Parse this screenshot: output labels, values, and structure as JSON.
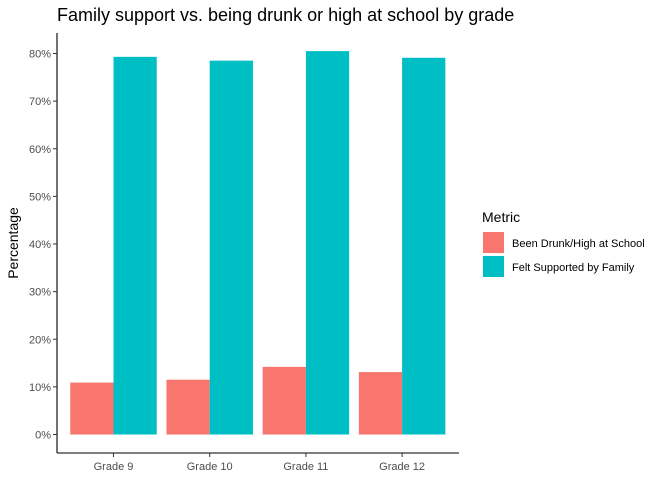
{
  "chart_data": {
    "type": "bar",
    "title": "Family support vs. being drunk or high at school by grade",
    "xlabel": "",
    "ylabel": "Percentage",
    "categories": [
      "Grade 9",
      "Grade 10",
      "Grade 11",
      "Grade 12"
    ],
    "series": [
      {
        "name": "Been Drunk/High at School",
        "values": [
          10.9,
          11.5,
          14.2,
          13.1
        ],
        "color": "#F8766D"
      },
      {
        "name": "Felt Supported by Family",
        "values": [
          79.3,
          78.5,
          80.5,
          79.1
        ],
        "color": "#00BFC4"
      }
    ],
    "ylim": [
      0,
      80
    ],
    "yticks": [
      "0%",
      "10%",
      "20%",
      "30%",
      "40%",
      "50%",
      "60%",
      "70%",
      "80%"
    ],
    "legend": {
      "title": "Metric",
      "position": "right"
    },
    "grid": false
  }
}
